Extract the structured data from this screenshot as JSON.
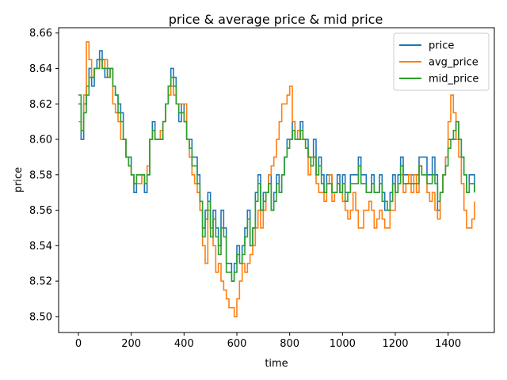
{
  "chart_data": {
    "type": "line",
    "title": "price & average price & mid price",
    "xlabel": "time",
    "ylabel": "price",
    "xlim": [
      -75,
      1575
    ],
    "ylim": [
      8.491,
      8.663
    ],
    "xticks": [
      0,
      200,
      400,
      600,
      800,
      1000,
      1200,
      1400
    ],
    "yticks": [
      8.5,
      8.52,
      8.54,
      8.56,
      8.58,
      8.6,
      8.62,
      8.64,
      8.66
    ],
    "legend_position": "top-right",
    "grid": false,
    "series": [
      {
        "name": "price",
        "color": "#1f77b4",
        "x": [
          0,
          10,
          20,
          30,
          40,
          50,
          60,
          70,
          80,
          90,
          100,
          110,
          120,
          130,
          140,
          150,
          160,
          170,
          180,
          190,
          200,
          210,
          220,
          230,
          240,
          250,
          260,
          270,
          280,
          290,
          300,
          310,
          320,
          330,
          340,
          350,
          360,
          370,
          380,
          390,
          400,
          410,
          420,
          430,
          440,
          450,
          460,
          470,
          480,
          490,
          500,
          510,
          520,
          530,
          540,
          550,
          560,
          570,
          580,
          590,
          600,
          610,
          620,
          630,
          640,
          650,
          660,
          670,
          680,
          690,
          700,
          710,
          720,
          730,
          740,
          750,
          760,
          770,
          780,
          790,
          800,
          810,
          820,
          830,
          840,
          850,
          860,
          870,
          880,
          890,
          900,
          910,
          920,
          930,
          940,
          950,
          960,
          970,
          980,
          990,
          1000,
          1010,
          1020,
          1030,
          1040,
          1050,
          1060,
          1070,
          1080,
          1090,
          1100,
          1110,
          1120,
          1130,
          1140,
          1150,
          1160,
          1170,
          1180,
          1190,
          1200,
          1210,
          1220,
          1230,
          1240,
          1250,
          1260,
          1270,
          1280,
          1290,
          1300,
          1310,
          1320,
          1330,
          1340,
          1350,
          1360,
          1370,
          1380,
          1390,
          1400,
          1410,
          1420,
          1430,
          1440,
          1450,
          1460,
          1470,
          1480,
          1490,
          1500
        ],
        "y": [
          8.62,
          8.6,
          8.62,
          8.63,
          8.64,
          8.63,
          8.64,
          8.645,
          8.65,
          8.645,
          8.635,
          8.64,
          8.64,
          8.63,
          8.625,
          8.62,
          8.615,
          8.6,
          8.59,
          8.59,
          8.58,
          8.57,
          8.58,
          8.58,
          8.58,
          8.57,
          8.58,
          8.6,
          8.61,
          8.6,
          8.6,
          8.6,
          8.61,
          8.62,
          8.63,
          8.64,
          8.635,
          8.62,
          8.61,
          8.62,
          8.61,
          8.6,
          8.6,
          8.59,
          8.59,
          8.58,
          8.56,
          8.55,
          8.56,
          8.57,
          8.55,
          8.56,
          8.55,
          8.54,
          8.56,
          8.55,
          8.53,
          8.53,
          8.52,
          8.53,
          8.54,
          8.53,
          8.54,
          8.55,
          8.56,
          8.54,
          8.55,
          8.57,
          8.58,
          8.56,
          8.57,
          8.57,
          8.58,
          8.56,
          8.57,
          8.58,
          8.57,
          8.58,
          8.59,
          8.6,
          8.6,
          8.61,
          8.6,
          8.6,
          8.61,
          8.6,
          8.6,
          8.59,
          8.59,
          8.6,
          8.58,
          8.59,
          8.58,
          8.57,
          8.58,
          8.58,
          8.57,
          8.57,
          8.58,
          8.57,
          8.58,
          8.57,
          8.57,
          8.58,
          8.58,
          8.58,
          8.59,
          8.58,
          8.58,
          8.57,
          8.57,
          8.58,
          8.57,
          8.57,
          8.58,
          8.57,
          8.56,
          8.56,
          8.57,
          8.58,
          8.57,
          8.58,
          8.59,
          8.58,
          8.58,
          8.58,
          8.58,
          8.58,
          8.58,
          8.59,
          8.59,
          8.59,
          8.58,
          8.58,
          8.59,
          8.58,
          8.56,
          8.57,
          8.58,
          8.59,
          8.6,
          8.6,
          8.6,
          8.61,
          8.6,
          8.59,
          8.58,
          8.57,
          8.58,
          8.58,
          8.57
        ]
      },
      {
        "name": "avg_price",
        "color": "#ff7f0e",
        "x": [
          0,
          10,
          20,
          30,
          40,
          50,
          60,
          70,
          80,
          90,
          100,
          110,
          120,
          130,
          140,
          150,
          160,
          170,
          180,
          190,
          200,
          210,
          220,
          230,
          240,
          250,
          260,
          270,
          280,
          290,
          300,
          310,
          320,
          330,
          340,
          350,
          360,
          370,
          380,
          390,
          400,
          410,
          420,
          430,
          440,
          450,
          460,
          470,
          480,
          490,
          500,
          510,
          520,
          530,
          540,
          550,
          560,
          570,
          580,
          590,
          600,
          610,
          620,
          630,
          640,
          650,
          660,
          670,
          680,
          690,
          700,
          710,
          720,
          730,
          740,
          750,
          760,
          770,
          780,
          790,
          800,
          810,
          820,
          830,
          840,
          850,
          860,
          870,
          880,
          890,
          900,
          910,
          920,
          930,
          940,
          950,
          960,
          970,
          980,
          990,
          1000,
          1010,
          1020,
          1030,
          1040,
          1050,
          1060,
          1070,
          1080,
          1090,
          1100,
          1110,
          1120,
          1130,
          1140,
          1150,
          1160,
          1170,
          1180,
          1190,
          1200,
          1210,
          1220,
          1230,
          1240,
          1250,
          1260,
          1270,
          1280,
          1290,
          1300,
          1310,
          1320,
          1330,
          1340,
          1350,
          1360,
          1370,
          1380,
          1390,
          1400,
          1410,
          1420,
          1430,
          1440,
          1450,
          1460,
          1470,
          1480,
          1490,
          1500
        ],
        "y": [
          8.61,
          8.605,
          8.625,
          8.655,
          8.645,
          8.635,
          8.64,
          8.64,
          8.645,
          8.64,
          8.645,
          8.635,
          8.64,
          8.62,
          8.615,
          8.61,
          8.6,
          8.6,
          8.59,
          8.585,
          8.58,
          8.575,
          8.575,
          8.575,
          8.58,
          8.575,
          8.585,
          8.6,
          8.605,
          8.6,
          8.6,
          8.605,
          8.61,
          8.62,
          8.625,
          8.63,
          8.625,
          8.62,
          8.62,
          8.62,
          8.62,
          8.6,
          8.59,
          8.58,
          8.575,
          8.57,
          8.56,
          8.54,
          8.53,
          8.56,
          8.55,
          8.54,
          8.525,
          8.53,
          8.52,
          8.515,
          8.51,
          8.505,
          8.505,
          8.5,
          8.51,
          8.52,
          8.53,
          8.525,
          8.53,
          8.535,
          8.54,
          8.55,
          8.56,
          8.55,
          8.56,
          8.57,
          8.58,
          8.585,
          8.59,
          8.6,
          8.61,
          8.62,
          8.62,
          8.625,
          8.63,
          8.61,
          8.6,
          8.605,
          8.6,
          8.6,
          8.595,
          8.58,
          8.59,
          8.59,
          8.575,
          8.57,
          8.57,
          8.565,
          8.575,
          8.58,
          8.565,
          8.57,
          8.575,
          8.57,
          8.565,
          8.56,
          8.555,
          8.56,
          8.57,
          8.56,
          8.55,
          8.55,
          8.56,
          8.56,
          8.565,
          8.56,
          8.55,
          8.555,
          8.56,
          8.555,
          8.55,
          8.55,
          8.56,
          8.56,
          8.57,
          8.575,
          8.58,
          8.57,
          8.575,
          8.58,
          8.57,
          8.58,
          8.57,
          8.585,
          8.58,
          8.58,
          8.57,
          8.565,
          8.57,
          8.56,
          8.555,
          8.57,
          8.58,
          8.59,
          8.61,
          8.625,
          8.615,
          8.6,
          8.59,
          8.575,
          8.56,
          8.55,
          8.55,
          8.555,
          8.565
        ]
      },
      {
        "name": "mid_price",
        "color": "#2ca02c",
        "x": [
          0,
          10,
          20,
          30,
          40,
          50,
          60,
          70,
          80,
          90,
          100,
          110,
          120,
          130,
          140,
          150,
          160,
          170,
          180,
          190,
          200,
          210,
          220,
          230,
          240,
          250,
          260,
          270,
          280,
          290,
          300,
          310,
          320,
          330,
          340,
          350,
          360,
          370,
          380,
          390,
          400,
          410,
          420,
          430,
          440,
          450,
          460,
          470,
          480,
          490,
          500,
          510,
          520,
          530,
          540,
          550,
          560,
          570,
          580,
          590,
          600,
          610,
          620,
          630,
          640,
          650,
          660,
          670,
          680,
          690,
          700,
          710,
          720,
          730,
          740,
          750,
          760,
          770,
          780,
          790,
          800,
          810,
          820,
          830,
          840,
          850,
          860,
          870,
          880,
          890,
          900,
          910,
          920,
          930,
          940,
          950,
          960,
          970,
          980,
          990,
          1000,
          1010,
          1020,
          1030,
          1040,
          1050,
          1060,
          1070,
          1080,
          1090,
          1100,
          1110,
          1120,
          1130,
          1140,
          1150,
          1160,
          1170,
          1180,
          1190,
          1200,
          1210,
          1220,
          1230,
          1240,
          1250,
          1260,
          1270,
          1280,
          1290,
          1300,
          1310,
          1320,
          1330,
          1340,
          1350,
          1360,
          1370,
          1380,
          1390,
          1400,
          1410,
          1420,
          1430,
          1440,
          1450,
          1460,
          1470,
          1480,
          1490,
          1500
        ],
        "y": [
          8.625,
          8.605,
          8.615,
          8.625,
          8.635,
          8.635,
          8.64,
          8.64,
          8.645,
          8.64,
          8.64,
          8.635,
          8.64,
          8.63,
          8.625,
          8.615,
          8.61,
          8.6,
          8.59,
          8.585,
          8.58,
          8.575,
          8.58,
          8.58,
          8.58,
          8.575,
          8.58,
          8.6,
          8.605,
          8.6,
          8.6,
          8.6,
          8.61,
          8.62,
          8.63,
          8.635,
          8.63,
          8.62,
          8.615,
          8.615,
          8.61,
          8.6,
          8.595,
          8.585,
          8.585,
          8.575,
          8.565,
          8.545,
          8.555,
          8.565,
          8.545,
          8.555,
          8.545,
          8.535,
          8.55,
          8.545,
          8.525,
          8.525,
          8.52,
          8.525,
          8.535,
          8.53,
          8.535,
          8.545,
          8.555,
          8.54,
          8.55,
          8.565,
          8.575,
          8.56,
          8.565,
          8.57,
          8.575,
          8.56,
          8.565,
          8.575,
          8.57,
          8.58,
          8.59,
          8.595,
          8.6,
          8.605,
          8.6,
          8.6,
          8.605,
          8.6,
          8.595,
          8.59,
          8.585,
          8.59,
          8.58,
          8.585,
          8.575,
          8.57,
          8.575,
          8.575,
          8.57,
          8.57,
          8.575,
          8.57,
          8.575,
          8.565,
          8.57,
          8.575,
          8.575,
          8.575,
          8.585,
          8.575,
          8.575,
          8.57,
          8.57,
          8.575,
          8.57,
          8.57,
          8.575,
          8.565,
          8.565,
          8.56,
          8.565,
          8.575,
          8.57,
          8.575,
          8.585,
          8.575,
          8.575,
          8.575,
          8.575,
          8.575,
          8.575,
          8.585,
          8.58,
          8.58,
          8.575,
          8.575,
          8.58,
          8.575,
          8.565,
          8.57,
          8.58,
          8.585,
          8.595,
          8.6,
          8.605,
          8.61,
          8.6,
          8.59,
          8.58,
          8.57,
          8.575,
          8.575,
          8.57
        ]
      }
    ]
  }
}
